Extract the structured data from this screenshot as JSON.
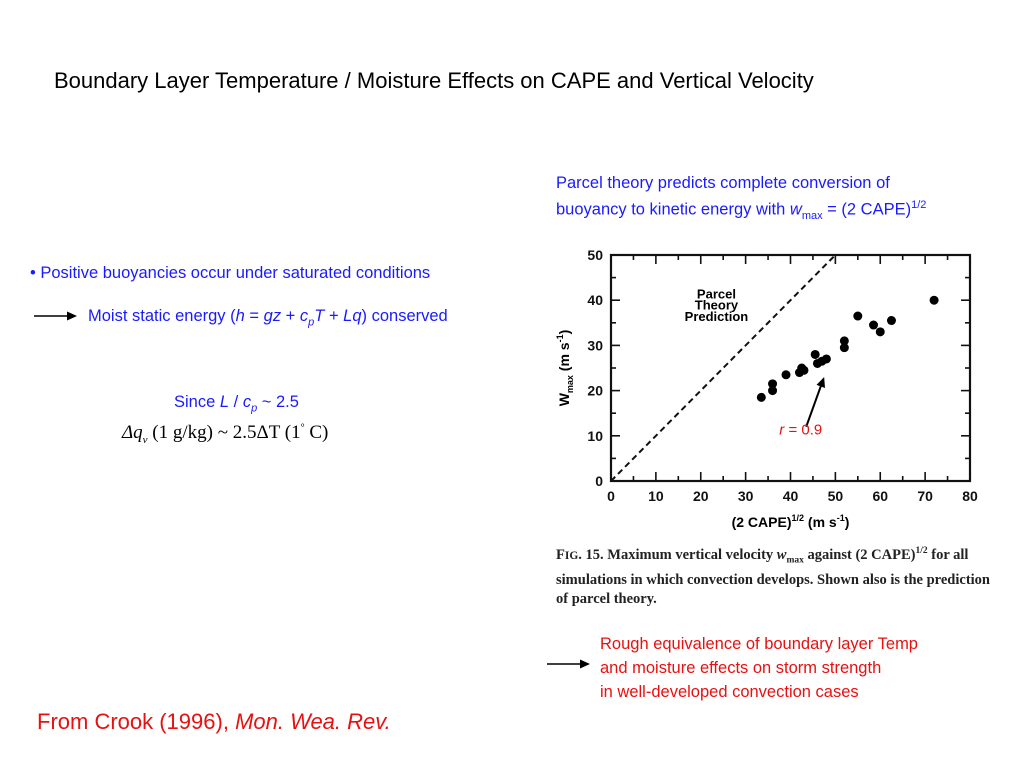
{
  "slide": {
    "title": "Boundary Layer Temperature / Moisture Effects on CAPE and Vertical Velocity",
    "parcel_note": {
      "line1": "Parcel theory predicts complete conversion of",
      "line2_prefix": "buoyancy to kinetic energy with ",
      "w": "w",
      "w_sub": "max",
      "eq_text": " = (2 CAPE)",
      "exponent": "1/2"
    },
    "bullet": "• Positive buoyancies occur under saturated conditions",
    "moist_static": {
      "prefix": "Moist static energy (",
      "h": "h",
      "eq": " = ",
      "gz": "gz",
      "plus1": " + ",
      "c": "c",
      "c_sub": "p",
      "T": "T",
      "plus2": " + ",
      "Lq": "Lq",
      "suffix": ") conserved"
    },
    "since": {
      "prefix": "Since ",
      "L": "L",
      "slash": " / ",
      "c": "c",
      "c_sub": "p",
      "suffix": " ~ 2.5"
    },
    "formula": {
      "delta_q": "Δq",
      "q_sub": "v",
      "part1": " (1 g/kg) ~ 2.5ΔT (1",
      "degree": "°",
      "part2": " C)"
    },
    "rough": {
      "line1": "Rough equivalence of boundary layer Temp",
      "line2": "and moisture effects on storm strength",
      "line3": "in well-developed convection cases"
    },
    "source": {
      "prefix": "From Crook (1996), ",
      "journal": "Mon. Wea. Rev."
    },
    "caption": {
      "fig": "F",
      "fig_sc": "IG",
      "text1": ". 15. Maximum vertical velocity ",
      "w": "w",
      "w_sub": "max",
      "text2": " against (2 CAPE)",
      "exp": "1/2",
      "text3": " for all simulations in which convection develops. Shown also is the prediction of parcel theory."
    },
    "r_label": {
      "r": "r",
      "value": " = 0.9"
    }
  },
  "chart_data": {
    "type": "scatter",
    "xlabel": "(2 CAPE)",
    "xlabel_exp": "1/2",
    "xlabel_units": " (m s",
    "xlabel_units_exp": "-1",
    "xlabel_close": ")",
    "ylabel": "W",
    "ylabel_sub": "max",
    "ylabel_units": " (m s",
    "ylabel_units_exp": "-1",
    "ylabel_close": ")",
    "xlim": [
      0,
      80
    ],
    "ylim": [
      0,
      50
    ],
    "xticks": [
      0,
      10,
      20,
      30,
      40,
      50,
      60,
      70,
      80
    ],
    "yticks": [
      0,
      10,
      20,
      30,
      40,
      50
    ],
    "annotation_lines": [
      "Parcel",
      "Theory",
      "Prediction"
    ],
    "parcel_theory_line": {
      "x": [
        0,
        50
      ],
      "y": [
        0,
        50
      ]
    },
    "points": [
      {
        "x": 33.5,
        "y": 18.5
      },
      {
        "x": 36,
        "y": 20
      },
      {
        "x": 36,
        "y": 21.5
      },
      {
        "x": 39,
        "y": 23.5
      },
      {
        "x": 42,
        "y": 24
      },
      {
        "x": 42.5,
        "y": 25
      },
      {
        "x": 43,
        "y": 24.5
      },
      {
        "x": 45.5,
        "y": 28
      },
      {
        "x": 46,
        "y": 26
      },
      {
        "x": 47,
        "y": 26.5
      },
      {
        "x": 48,
        "y": 27
      },
      {
        "x": 52,
        "y": 29.5
      },
      {
        "x": 52,
        "y": 31
      },
      {
        "x": 55,
        "y": 36.5
      },
      {
        "x": 58.5,
        "y": 34.5
      },
      {
        "x": 60,
        "y": 33
      },
      {
        "x": 62.5,
        "y": 35.5
      },
      {
        "x": 72,
        "y": 40
      }
    ]
  }
}
